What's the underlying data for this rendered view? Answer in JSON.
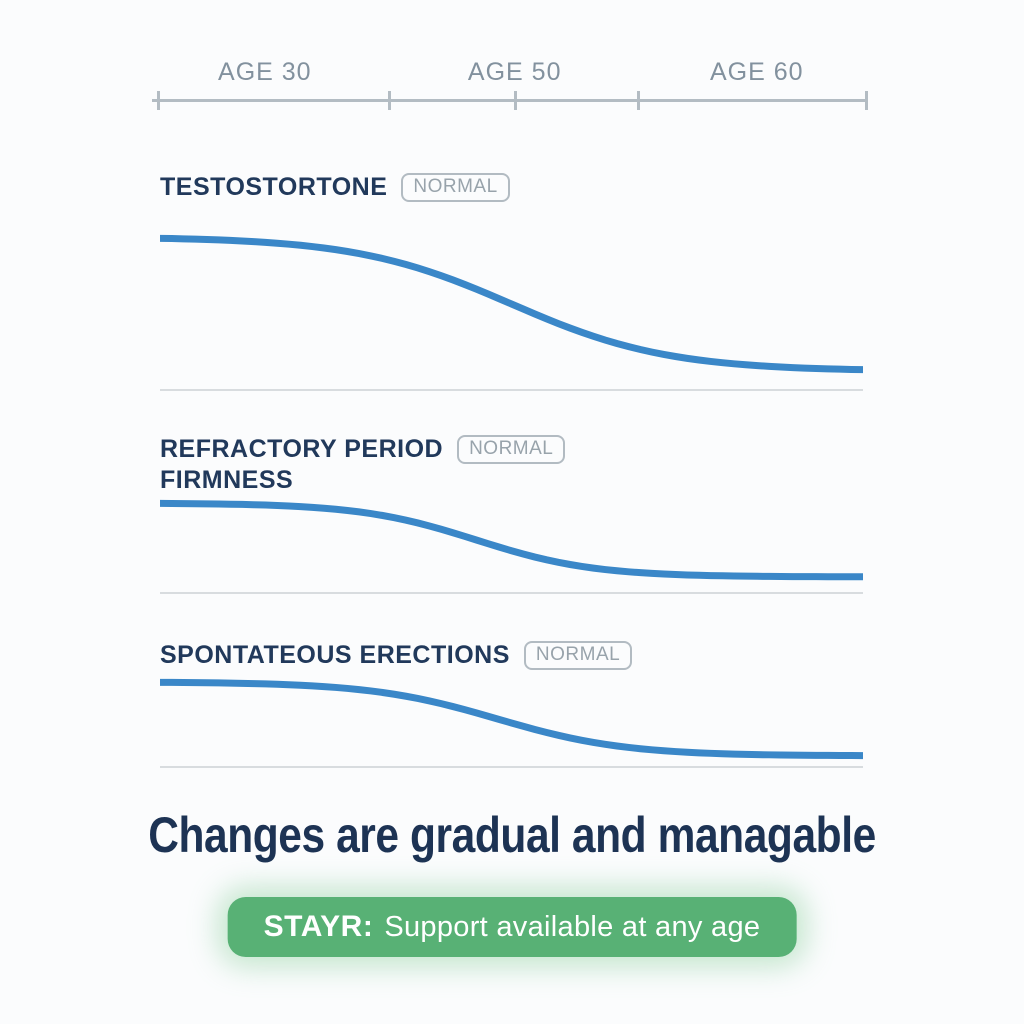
{
  "page": {
    "heading": "Changes are gradual and managable",
    "cta": {
      "brand": "STAYR:",
      "message": "Support available at any age"
    },
    "colors": {
      "page_bg": "#fbfcfd",
      "curve": "#3a87c8",
      "panel_title": "#21395b",
      "badge_text": "#98a3ab",
      "badge_border": "#b2bbc2",
      "axis_label": "#82919e",
      "axis_line": "#b3bcc3",
      "baseline": "#d8dcdf",
      "heading_text": "#1d3354",
      "pill_bg": "#58b175",
      "pill_text": "#ffffff"
    }
  },
  "chart_data": {
    "type": "line",
    "description": "Three stacked sigmoid decline curves versus age, each marked NORMAL",
    "x_axis": {
      "tick_labels": [
        "AGE 30",
        "AGE 50",
        "AGE 60"
      ],
      "label_positions_pct": [
        15.8,
        50.8,
        84.7
      ],
      "tick_positions_pct": [
        0.8,
        33.2,
        50.8,
        68.1,
        100
      ],
      "grid": false
    },
    "y_axis": {
      "range_pct": [
        0,
        100
      ],
      "visible": false
    },
    "panels": [
      {
        "title": "TESTOSTORTONE",
        "badge": "NORMAL",
        "trend": "sigmoid decline, high at age 30 to low past age 60",
        "curve_params": {
          "steepness": 9,
          "midpoint": 0.5
        },
        "x_samples_pct": [
          0,
          10,
          20,
          30,
          40,
          50,
          60,
          70,
          80,
          90,
          100
        ],
        "values_pct": [
          98.9,
          97.3,
          93.7,
          85.8,
          71.1,
          50.0,
          28.9,
          14.2,
          6.3,
          2.7,
          1.1
        ]
      },
      {
        "title": "REFRACTORY PERIOD",
        "title_line2": "FIRMNESS",
        "badge": "NORMAL",
        "trend": "sigmoid decline, flattens after age 60",
        "curve_params": {
          "steepness": 12,
          "midpoint": 0.45
        },
        "x_samples_pct": [
          0,
          10,
          20,
          30,
          40,
          50,
          60,
          70,
          80,
          90,
          100
        ],
        "values_pct": [
          99.5,
          98.5,
          95.3,
          85.8,
          64.6,
          35.4,
          14.2,
          4.7,
          1.5,
          0.5,
          0.1
        ]
      },
      {
        "title": "SPONTATEOUS ERECTIONS",
        "badge": "NORMAL",
        "trend": "sigmoid decline, flattens after age 60",
        "curve_params": {
          "steepness": 11,
          "midpoint": 0.48
        },
        "x_samples_pct": [
          0,
          10,
          20,
          30,
          40,
          50,
          60,
          70,
          80,
          90,
          100
        ],
        "values_pct": [
          99.5,
          98.5,
          95.6,
          87.9,
          70.7,
          44.5,
          21.1,
          8.2,
          2.9,
          1.0,
          0.3
        ]
      }
    ]
  }
}
